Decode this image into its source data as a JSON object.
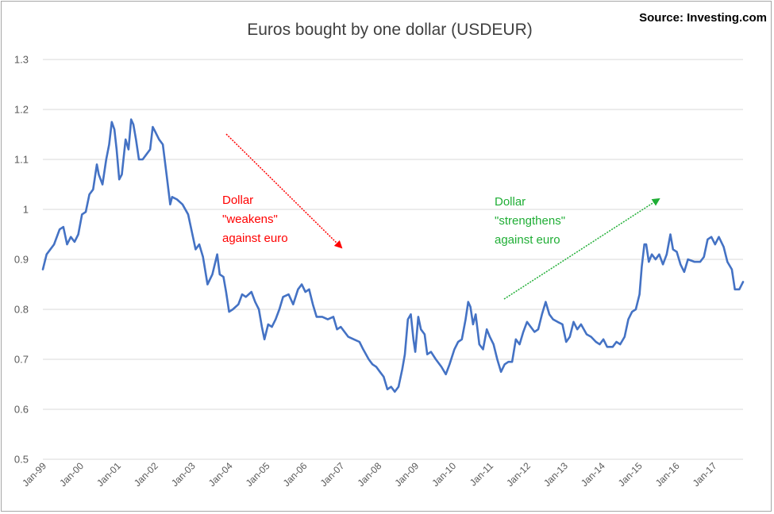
{
  "chart_data": {
    "type": "line",
    "title": "Euros bought by one dollar (USDEUR)",
    "source": "Source: Investing.com",
    "xlabel": "",
    "ylabel": "",
    "ylim": [
      0.5,
      1.3
    ],
    "yticks": [
      "0.5",
      "0.6",
      "0.7",
      "0.8",
      "0.9",
      "1",
      "1.1",
      "1.2",
      "1.3"
    ],
    "grid": true,
    "x_start": "Jan-99",
    "x_end": "Oct-17",
    "xticks": [
      "Jan-99",
      "Jan-00",
      "Jan-01",
      "Jan-02",
      "Jan-03",
      "Jan-04",
      "Jan-05",
      "Jan-06",
      "Jan-07",
      "Jan-08",
      "Jan-09",
      "Jan-10",
      "Jan-11",
      "Jan-12",
      "Jan-13",
      "Jan-14",
      "Jan-15",
      "Jan-16",
      "Jan-17"
    ],
    "series": [
      {
        "name": "USDEUR",
        "color": "#4472c4",
        "points": [
          [
            1999.0,
            0.88
          ],
          [
            1999.1,
            0.91
          ],
          [
            1999.3,
            0.93
          ],
          [
            1999.45,
            0.96
          ],
          [
            1999.55,
            0.965
          ],
          [
            1999.65,
            0.93
          ],
          [
            1999.75,
            0.945
          ],
          [
            1999.85,
            0.935
          ],
          [
            1999.95,
            0.95
          ],
          [
            2000.05,
            0.99
          ],
          [
            2000.15,
            0.995
          ],
          [
            2000.25,
            1.03
          ],
          [
            2000.35,
            1.04
          ],
          [
            2000.45,
            1.09
          ],
          [
            2000.5,
            1.07
          ],
          [
            2000.6,
            1.05
          ],
          [
            2000.7,
            1.1
          ],
          [
            2000.78,
            1.13
          ],
          [
            2000.85,
            1.175
          ],
          [
            2000.92,
            1.16
          ],
          [
            2000.98,
            1.12
          ],
          [
            2001.05,
            1.06
          ],
          [
            2001.12,
            1.07
          ],
          [
            2001.22,
            1.14
          ],
          [
            2001.3,
            1.12
          ],
          [
            2001.37,
            1.18
          ],
          [
            2001.43,
            1.17
          ],
          [
            2001.5,
            1.14
          ],
          [
            2001.58,
            1.1
          ],
          [
            2001.68,
            1.1
          ],
          [
            2001.78,
            1.11
          ],
          [
            2001.88,
            1.12
          ],
          [
            2001.95,
            1.165
          ],
          [
            2002.02,
            1.155
          ],
          [
            2002.12,
            1.14
          ],
          [
            2002.22,
            1.13
          ],
          [
            2002.32,
            1.07
          ],
          [
            2002.42,
            1.01
          ],
          [
            2002.47,
            1.025
          ],
          [
            2002.6,
            1.02
          ],
          [
            2002.75,
            1.01
          ],
          [
            2002.9,
            0.99
          ],
          [
            2003.0,
            0.955
          ],
          [
            2003.1,
            0.92
          ],
          [
            2003.2,
            0.93
          ],
          [
            2003.3,
            0.905
          ],
          [
            2003.42,
            0.85
          ],
          [
            2003.55,
            0.87
          ],
          [
            2003.68,
            0.91
          ],
          [
            2003.75,
            0.87
          ],
          [
            2003.85,
            0.865
          ],
          [
            2003.92,
            0.835
          ],
          [
            2004.0,
            0.795
          ],
          [
            2004.1,
            0.8
          ],
          [
            2004.25,
            0.81
          ],
          [
            2004.35,
            0.83
          ],
          [
            2004.45,
            0.825
          ],
          [
            2004.6,
            0.835
          ],
          [
            2004.7,
            0.815
          ],
          [
            2004.8,
            0.8
          ],
          [
            2004.88,
            0.765
          ],
          [
            2004.95,
            0.74
          ],
          [
            2005.05,
            0.77
          ],
          [
            2005.15,
            0.765
          ],
          [
            2005.25,
            0.78
          ],
          [
            2005.35,
            0.8
          ],
          [
            2005.45,
            0.825
          ],
          [
            2005.6,
            0.83
          ],
          [
            2005.72,
            0.81
          ],
          [
            2005.85,
            0.84
          ],
          [
            2005.95,
            0.85
          ],
          [
            2006.05,
            0.835
          ],
          [
            2006.15,
            0.84
          ],
          [
            2006.25,
            0.81
          ],
          [
            2006.35,
            0.785
          ],
          [
            2006.5,
            0.785
          ],
          [
            2006.65,
            0.78
          ],
          [
            2006.8,
            0.785
          ],
          [
            2006.9,
            0.76
          ],
          [
            2007.0,
            0.765
          ],
          [
            2007.1,
            0.755
          ],
          [
            2007.2,
            0.745
          ],
          [
            2007.35,
            0.74
          ],
          [
            2007.5,
            0.735
          ],
          [
            2007.6,
            0.72
          ],
          [
            2007.75,
            0.7
          ],
          [
            2007.85,
            0.69
          ],
          [
            2007.95,
            0.685
          ],
          [
            2008.05,
            0.675
          ],
          [
            2008.15,
            0.665
          ],
          [
            2008.25,
            0.64
          ],
          [
            2008.35,
            0.645
          ],
          [
            2008.45,
            0.635
          ],
          [
            2008.55,
            0.645
          ],
          [
            2008.65,
            0.68
          ],
          [
            2008.72,
            0.71
          ],
          [
            2008.8,
            0.78
          ],
          [
            2008.88,
            0.79
          ],
          [
            2008.95,
            0.74
          ],
          [
            2009.0,
            0.715
          ],
          [
            2009.08,
            0.785
          ],
          [
            2009.15,
            0.76
          ],
          [
            2009.25,
            0.75
          ],
          [
            2009.32,
            0.71
          ],
          [
            2009.42,
            0.715
          ],
          [
            2009.55,
            0.7
          ],
          [
            2009.7,
            0.685
          ],
          [
            2009.82,
            0.67
          ],
          [
            2009.92,
            0.69
          ],
          [
            2010.05,
            0.72
          ],
          [
            2010.15,
            0.735
          ],
          [
            2010.25,
            0.74
          ],
          [
            2010.35,
            0.78
          ],
          [
            2010.42,
            0.815
          ],
          [
            2010.48,
            0.805
          ],
          [
            2010.55,
            0.77
          ],
          [
            2010.62,
            0.79
          ],
          [
            2010.72,
            0.73
          ],
          [
            2010.82,
            0.72
          ],
          [
            2010.92,
            0.76
          ],
          [
            2011.0,
            0.745
          ],
          [
            2011.1,
            0.73
          ],
          [
            2011.2,
            0.7
          ],
          [
            2011.3,
            0.675
          ],
          [
            2011.4,
            0.69
          ],
          [
            2011.5,
            0.695
          ],
          [
            2011.6,
            0.695
          ],
          [
            2011.7,
            0.74
          ],
          [
            2011.8,
            0.73
          ],
          [
            2011.9,
            0.755
          ],
          [
            2012.0,
            0.775
          ],
          [
            2012.1,
            0.765
          ],
          [
            2012.2,
            0.755
          ],
          [
            2012.3,
            0.76
          ],
          [
            2012.4,
            0.79
          ],
          [
            2012.5,
            0.815
          ],
          [
            2012.6,
            0.79
          ],
          [
            2012.7,
            0.78
          ],
          [
            2012.82,
            0.775
          ],
          [
            2012.95,
            0.77
          ],
          [
            2013.05,
            0.735
          ],
          [
            2013.15,
            0.745
          ],
          [
            2013.25,
            0.775
          ],
          [
            2013.35,
            0.76
          ],
          [
            2013.45,
            0.77
          ],
          [
            2013.6,
            0.75
          ],
          [
            2013.72,
            0.745
          ],
          [
            2013.85,
            0.735
          ],
          [
            2013.95,
            0.73
          ],
          [
            2014.05,
            0.74
          ],
          [
            2014.15,
            0.725
          ],
          [
            2014.3,
            0.725
          ],
          [
            2014.4,
            0.735
          ],
          [
            2014.5,
            0.73
          ],
          [
            2014.62,
            0.745
          ],
          [
            2014.72,
            0.78
          ],
          [
            2014.82,
            0.795
          ],
          [
            2014.92,
            0.8
          ],
          [
            2015.02,
            0.83
          ],
          [
            2015.08,
            0.885
          ],
          [
            2015.15,
            0.93
          ],
          [
            2015.2,
            0.93
          ],
          [
            2015.27,
            0.895
          ],
          [
            2015.35,
            0.91
          ],
          [
            2015.45,
            0.9
          ],
          [
            2015.55,
            0.91
          ],
          [
            2015.65,
            0.89
          ],
          [
            2015.75,
            0.91
          ],
          [
            2015.85,
            0.95
          ],
          [
            2015.92,
            0.92
          ],
          [
            2016.02,
            0.915
          ],
          [
            2016.12,
            0.89
          ],
          [
            2016.22,
            0.875
          ],
          [
            2016.32,
            0.9
          ],
          [
            2016.5,
            0.895
          ],
          [
            2016.65,
            0.895
          ],
          [
            2016.75,
            0.905
          ],
          [
            2016.85,
            0.94
          ],
          [
            2016.95,
            0.945
          ],
          [
            2017.05,
            0.93
          ],
          [
            2017.15,
            0.945
          ],
          [
            2017.28,
            0.925
          ],
          [
            2017.38,
            0.895
          ],
          [
            2017.5,
            0.88
          ],
          [
            2017.58,
            0.84
          ],
          [
            2017.7,
            0.84
          ],
          [
            2017.8,
            0.855
          ]
        ]
      }
    ],
    "annotations": [
      {
        "lines": [
          "Dollar",
          "\"weakens\"",
          "against euro"
        ],
        "color": "#ff0000"
      },
      {
        "lines": [
          "Dollar",
          "\"strengthens\"",
          "against euro"
        ],
        "color": "#1fae35"
      }
    ]
  }
}
